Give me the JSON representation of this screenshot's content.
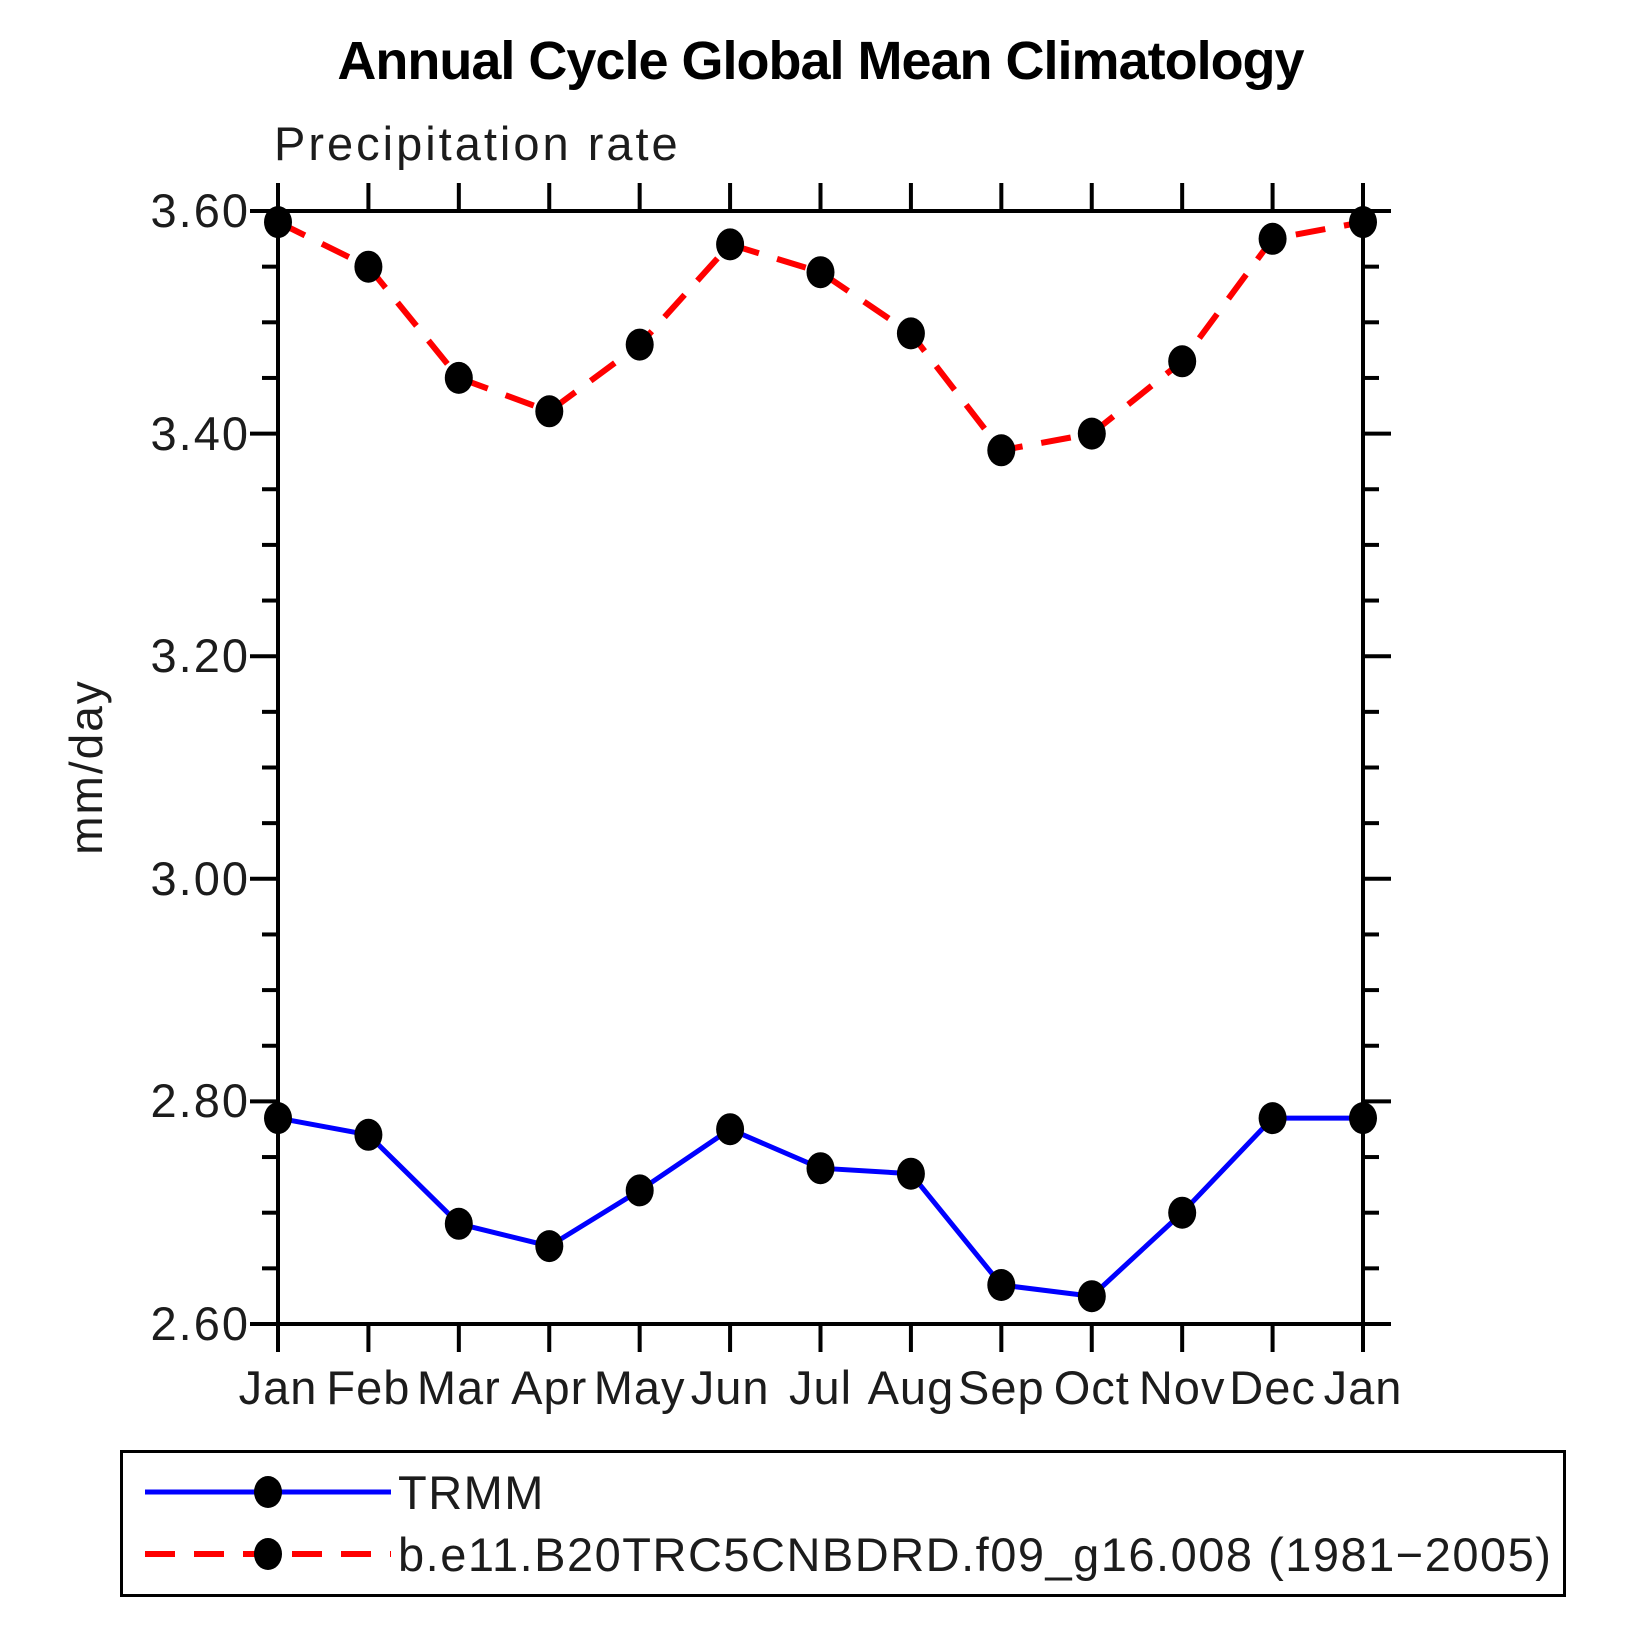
{
  "chart_data": {
    "type": "line",
    "title": "Annual Cycle Global Mean Climatology",
    "subtitle": "Precipitation rate",
    "ylabel": "mm/day",
    "xlabel": "",
    "x_categories": [
      "Jan",
      "Feb",
      "Mar",
      "Apr",
      "May",
      "Jun",
      "Jul",
      "Aug",
      "Sep",
      "Oct",
      "Nov",
      "Dec",
      "Jan"
    ],
    "ylim": [
      2.6,
      3.6
    ],
    "ytick_major": [
      2.6,
      2.8,
      3.0,
      3.2,
      3.4,
      3.6
    ],
    "ytick_major_labels": [
      "2.60",
      "2.80",
      "3.00",
      "3.20",
      "3.40",
      "3.60"
    ],
    "ytick_minor_step": 0.05,
    "grid": false,
    "legend_position": "bottom-left-box",
    "axis_color": "#000000",
    "marker": "filled-circle",
    "marker_color": "#000000",
    "series": [
      {
        "name": "TRMM",
        "color": "#0000ff",
        "line_style": "solid",
        "values": [
          2.785,
          2.77,
          2.69,
          2.67,
          2.72,
          2.775,
          2.74,
          2.735,
          2.635,
          2.625,
          2.7,
          2.785,
          2.785
        ]
      },
      {
        "name": "b.e11.B20TRC5CNBDRD.f09_g16.008 (1981−2005)",
        "color": "#ff0000",
        "line_style": "dashed",
        "values": [
          3.59,
          3.55,
          3.45,
          3.42,
          3.48,
          3.57,
          3.545,
          3.49,
          3.385,
          3.4,
          3.465,
          3.575,
          3.59
        ]
      }
    ]
  }
}
